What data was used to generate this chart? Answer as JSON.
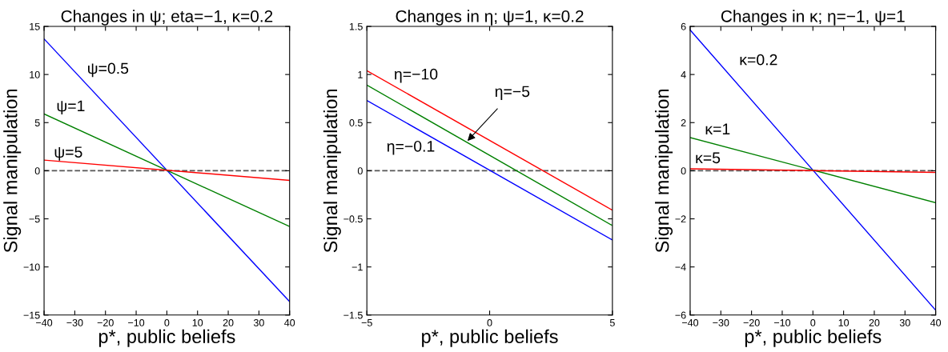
{
  "chart_data": [
    {
      "type": "line",
      "title": "Changes in ψ; eta=−1, κ=0.2",
      "xlabel": "p*, public beliefs",
      "ylabel": "Signal manipulation",
      "x": [
        -40,
        40
      ],
      "xlim": [
        -40,
        40
      ],
      "ylim": [
        -15,
        15
      ],
      "xticks": [
        -40,
        -30,
        -20,
        -10,
        0,
        10,
        20,
        30,
        40
      ],
      "yticks": [
        -15,
        -10,
        -5,
        0,
        5,
        10,
        15
      ],
      "series": [
        {
          "name": "ψ=0.5",
          "color": "#0000ff",
          "values": [
            13.7,
            -13.6
          ]
        },
        {
          "name": "ψ=1",
          "color": "#008000",
          "values": [
            5.9,
            -5.8
          ]
        },
        {
          "name": "ψ=5",
          "color": "#ff0000",
          "values": [
            1.1,
            -1.0
          ]
        }
      ],
      "ref_lines": [
        {
          "axis": "y",
          "value": 0,
          "color": "#555555",
          "line_style": "dashed"
        }
      ],
      "grid": false,
      "legend": false,
      "marker": "none",
      "line_style": "solid"
    },
    {
      "type": "line",
      "title": "Changes in η; ψ=1, κ=0.2",
      "xlabel": "p*, public beliefs",
      "ylabel": "Signal manipulation",
      "x": [
        -5,
        5
      ],
      "xlim": [
        -5,
        5
      ],
      "ylim": [
        -1.5,
        1.5
      ],
      "xticks": [
        -5,
        0,
        5
      ],
      "yticks": [
        -1.5,
        -1,
        -0.5,
        0,
        0.5,
        1,
        1.5
      ],
      "series": [
        {
          "name": "η=−10",
          "color": "#ff0000",
          "values": [
            1.04,
            -0.41
          ]
        },
        {
          "color": "#008000",
          "values": [
            0.89,
            -0.57
          ]
        },
        {
          "name": "η=−0.1",
          "color": "#0000ff",
          "values": [
            0.73,
            -0.72
          ]
        }
      ],
      "annotations": [
        {
          "text": "η=−5",
          "x": -0.9,
          "y": 0.31
        }
      ],
      "ref_lines": [
        {
          "axis": "y",
          "value": 0,
          "color": "#555555",
          "line_style": "dashed"
        }
      ],
      "grid": false,
      "legend": false,
      "marker": "none",
      "line_style": "solid"
    },
    {
      "type": "line",
      "title": "Changes in κ; η=−1, ψ=1",
      "xlabel": "p*, public beliefs",
      "ylabel": "Signal manipulation",
      "x": [
        -40,
        40
      ],
      "xlim": [
        -40,
        40
      ],
      "ylim": [
        -6,
        6
      ],
      "xticks": [
        -40,
        -30,
        -20,
        -10,
        0,
        10,
        20,
        30,
        40
      ],
      "yticks": [
        -6,
        -4,
        -2,
        0,
        2,
        4,
        6
      ],
      "series": [
        {
          "name": "κ=0.2",
          "color": "#0000ff",
          "values": [
            5.85,
            -5.8
          ]
        },
        {
          "name": "κ=1",
          "color": "#008000",
          "values": [
            1.38,
            -1.33
          ]
        },
        {
          "name": "κ=5",
          "color": "#ff0000",
          "values": [
            0.08,
            -0.07
          ]
        }
      ],
      "ref_lines": [
        {
          "axis": "y",
          "value": 0,
          "color": "#555555",
          "line_style": "dashed"
        }
      ],
      "grid": false,
      "legend": false,
      "marker": "none",
      "line_style": "solid"
    }
  ]
}
